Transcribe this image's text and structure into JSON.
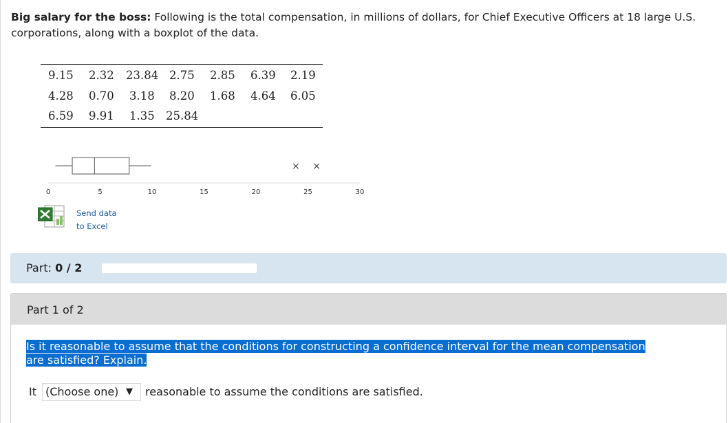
{
  "problem": {
    "title": "Big salary for the boss:",
    "text": "Following is the total compensation, in millions of dollars, for Chief Executive Officers at 18 large U.S. corporations, along with a boxplot of the data."
  },
  "data_rows": [
    [
      "9.15",
      "2.32",
      "23.84",
      "2.75",
      "2.85",
      "6.39",
      "2.19"
    ],
    [
      "4.28",
      "0.70",
      "3.18",
      "8.20",
      "1.68",
      "4.64",
      "6.05"
    ],
    [
      "6.59",
      "9.91",
      "1.35",
      "25.84"
    ]
  ],
  "chart_data": {
    "type": "boxplot",
    "xlim": [
      0,
      30
    ],
    "ticks": [
      0,
      5,
      10,
      15,
      20,
      25,
      30
    ],
    "whisker_low": 0.7,
    "q1": 2.32,
    "median": 4.46,
    "q3": 7.8,
    "whisker_high": 9.91,
    "outliers": [
      23.84,
      25.84
    ],
    "outlier_marker": "×"
  },
  "excel_link": {
    "line1": "Send data",
    "line2": "to Excel",
    "icon": "excel-icon"
  },
  "part_progress": {
    "label": "Part:",
    "value": "0 / 2",
    "fraction": 0.0
  },
  "part_header": "Part 1 of 2",
  "question": "Is it reasonable to assume that the conditions for constructing a confidence interval for the mean compensation are satisfied? Explain.",
  "answer": {
    "prefix": "It",
    "dropdown_value": "(Choose one)",
    "dropdown_arrow": "▼",
    "suffix": "reasonable to assume the conditions are satisfied."
  },
  "colors": {
    "highlight": "#0a6ed1",
    "part_bar_bg": "#d7e5f1",
    "part_header_bg": "#dcdcdc",
    "link": "#1a5aa8"
  }
}
